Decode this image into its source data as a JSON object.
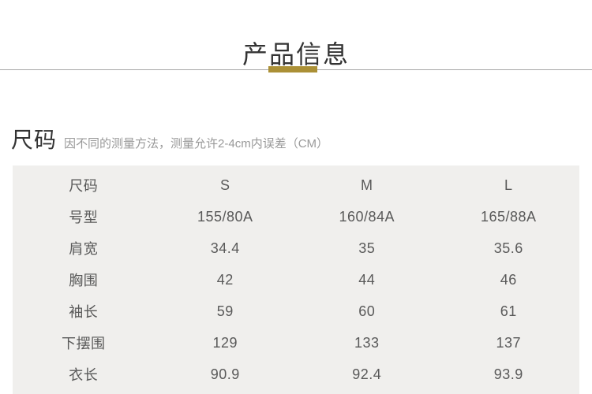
{
  "page": {
    "title": "产品信息"
  },
  "size_section": {
    "heading": "尺码",
    "note": "因不同的测量方法，测量允许2-4cm内误差（CM）"
  },
  "size_table": {
    "rows": [
      {
        "label": "尺码",
        "values": [
          "S",
          "M",
          "L"
        ]
      },
      {
        "label": "号型",
        "values": [
          "155/80A",
          "160/84A",
          "165/88A"
        ]
      },
      {
        "label": "肩宽",
        "values": [
          "34.4",
          "35",
          "35.6"
        ]
      },
      {
        "label": "胸围",
        "values": [
          "42",
          "44",
          "46"
        ]
      },
      {
        "label": "袖长",
        "values": [
          "59",
          "60",
          "61"
        ]
      },
      {
        "label": "下摆围",
        "values": [
          "129",
          "133",
          "137"
        ]
      },
      {
        "label": "衣长",
        "values": [
          "90.9",
          "92.4",
          "93.9"
        ]
      }
    ]
  },
  "colors": {
    "accent_gold": "#ab9036",
    "divider_gray": "#a8a8a8",
    "panel_background": "#f0efed",
    "title_text": "#333333",
    "note_text": "#999999",
    "table_text": "#595959"
  }
}
